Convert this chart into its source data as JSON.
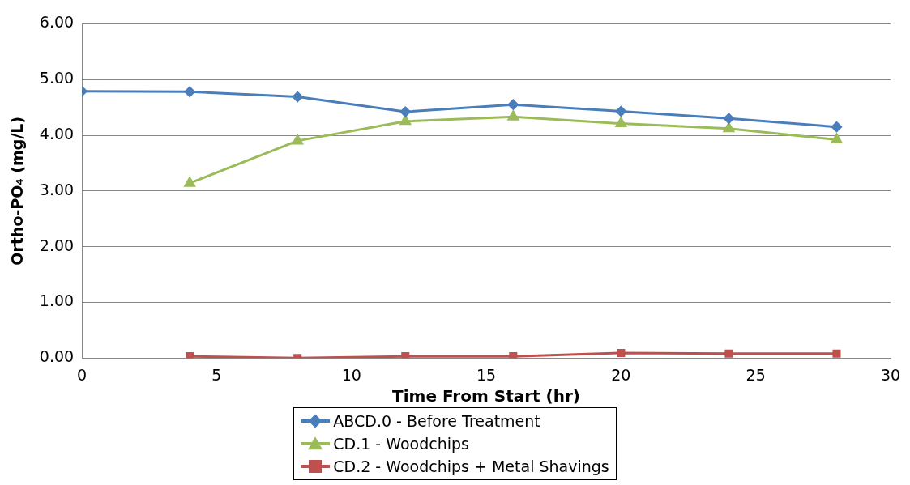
{
  "chart_data": {
    "type": "line",
    "xlabel": "Time From Start (hr)",
    "ylabel": "Ortho-PO₄ (mg/L)",
    "xlim": [
      0,
      30
    ],
    "xticks": [
      0,
      5,
      10,
      15,
      20,
      25,
      30
    ],
    "ylim": [
      0,
      6
    ],
    "yticks": [
      {
        "value": 0,
        "label": "0.00"
      },
      {
        "value": 1,
        "label": "1.00"
      },
      {
        "value": 2,
        "label": "2.00"
      },
      {
        "value": 3,
        "label": "3.00"
      },
      {
        "value": 4,
        "label": "4.00"
      },
      {
        "value": 5,
        "label": "5.00"
      },
      {
        "value": 6,
        "label": "6.00"
      }
    ],
    "grid": "y",
    "legend": "bottom",
    "line_style": "solid",
    "series": [
      {
        "name": "ABCD.0 - Before Treatment",
        "color": "#4a7ebb",
        "marker": "diamond",
        "x": [
          0,
          4,
          8,
          12,
          16,
          20,
          24,
          28
        ],
        "values": [
          4.79,
          4.78,
          4.69,
          4.42,
          4.55,
          4.43,
          4.3,
          4.15
        ]
      },
      {
        "name": "CD.1 - Woodchips",
        "color": "#9bbb59",
        "marker": "triangle",
        "x": [
          4,
          8,
          12,
          16,
          20,
          24,
          28
        ],
        "values": [
          3.14,
          3.9,
          4.25,
          4.33,
          4.21,
          4.12,
          3.92
        ]
      },
      {
        "name": "CD.2 - Woodchips + Metal Shavings",
        "color": "#c0504d",
        "marker": "square",
        "x": [
          4,
          8,
          12,
          16,
          20,
          24,
          28
        ],
        "values": [
          0.03,
          0.0,
          0.03,
          0.03,
          0.09,
          0.08,
          0.08
        ]
      }
    ]
  }
}
